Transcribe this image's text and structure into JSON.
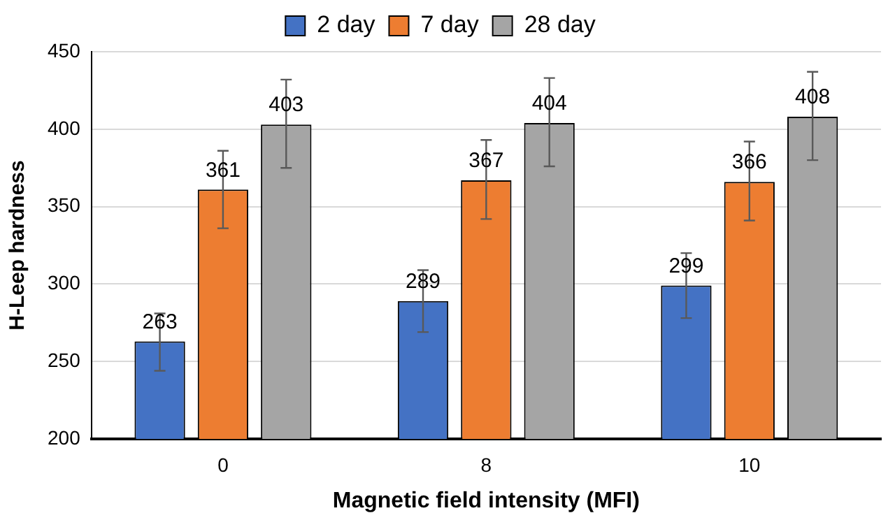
{
  "chart_data": {
    "type": "bar",
    "xlabel": "Magnetic field intensity (MFI)",
    "ylabel": "H-Leep hardness",
    "categories": [
      "0",
      "8",
      "10"
    ],
    "series": [
      {
        "name": "2 day",
        "color": "#4472c4",
        "values": [
          263,
          289,
          299
        ],
        "errors": [
          [
            244,
            281
          ],
          [
            269,
            309
          ],
          [
            278,
            320
          ]
        ]
      },
      {
        "name": "7 day",
        "color": "#ed7d31",
        "values": [
          361,
          367,
          366
        ],
        "errors": [
          [
            336,
            386
          ],
          [
            342,
            393
          ],
          [
            341,
            392
          ]
        ]
      },
      {
        "name": "28 day",
        "color": "#a5a5a5",
        "values": [
          403,
          404,
          408
        ],
        "errors": [
          [
            375,
            432
          ],
          [
            376,
            433
          ],
          [
            380,
            437
          ]
        ]
      }
    ],
    "ylim": [
      200,
      450
    ],
    "yticks": [
      200,
      250,
      300,
      350,
      400,
      450
    ],
    "grid": "y",
    "legend": "top",
    "data_labels": true
  }
}
